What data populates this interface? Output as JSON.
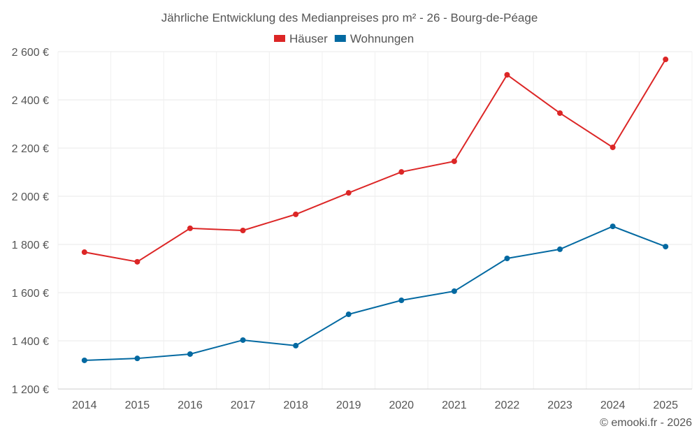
{
  "chart_data": {
    "type": "line",
    "title": "Jährliche Entwicklung des Medianpreises pro m² - 26 - Bourg-de-Péage",
    "categories": [
      "2014",
      "2015",
      "2016",
      "2017",
      "2018",
      "2019",
      "2020",
      "2021",
      "2022",
      "2023",
      "2024",
      "2025"
    ],
    "series": [
      {
        "name": "Häuser",
        "color": "#dc2626",
        "values": [
          1768,
          1728,
          1867,
          1858,
          1925,
          2014,
          2101,
          2145,
          2504,
          2345,
          2203,
          2568
        ]
      },
      {
        "name": "Wohnungen",
        "color": "#0369a1",
        "values": [
          1319,
          1327,
          1345,
          1403,
          1380,
          1510,
          1568,
          1606,
          1742,
          1780,
          1875,
          1791
        ]
      }
    ],
    "ylim": [
      1200,
      2600
    ],
    "yticks": [
      1200,
      1400,
      1600,
      1800,
      2000,
      2200,
      2400,
      2600
    ],
    "ytick_labels": [
      "1 200 €",
      "1 400 €",
      "1 600 €",
      "1 800 €",
      "2 000 €",
      "2 200 €",
      "2 400 €",
      "2 600 €"
    ],
    "xlabel": "",
    "ylabel": "",
    "grid": true,
    "legend": "top-center"
  },
  "footer": {
    "credit": "© emooki.fr - 2026"
  }
}
